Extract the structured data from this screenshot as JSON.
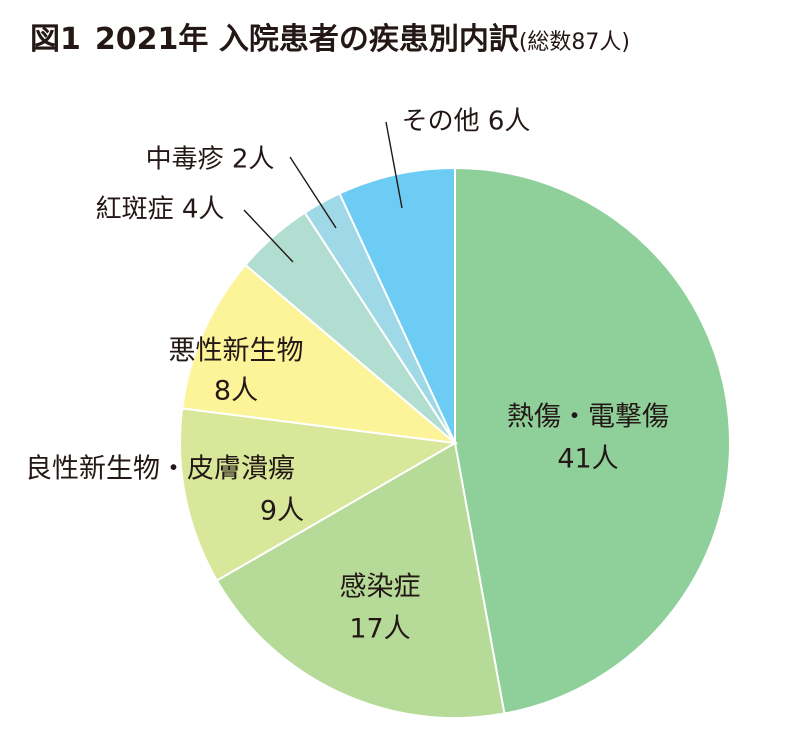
{
  "chart_data": {
    "type": "pie",
    "title": {
      "figure_label": "図1",
      "text": "2021年 入院患者の疾患別内訳",
      "subtitle": "(総数87人)"
    },
    "total": 87,
    "slices": [
      {
        "category": "熱傷・電撃傷",
        "value": 41,
        "value_label": "41人",
        "color": "#8fcf9a",
        "label_style": "inside"
      },
      {
        "category": "感染症",
        "value": 17,
        "value_label": "17人",
        "color": "#b6da98",
        "label_style": "inside"
      },
      {
        "category": "良性新生物・皮膚潰瘍",
        "value": 9,
        "value_label": "9人",
        "color": "#d8e79a",
        "label_style": "inside"
      },
      {
        "category": "悪性新生物",
        "value": 8,
        "value_label": "8人",
        "color": "#fdf399",
        "label_style": "inside"
      },
      {
        "category": "紅斑症",
        "value": 4,
        "value_label": "4人",
        "color": "#b2ded2",
        "label_style": "callout"
      },
      {
        "category": "中毒疹",
        "value": 2,
        "value_label": "2人",
        "color": "#9fd8e6",
        "label_style": "callout"
      },
      {
        "category": "その他",
        "value": 6,
        "value_label": "6人",
        "color": "#6cccf4",
        "label_style": "callout"
      }
    ]
  }
}
